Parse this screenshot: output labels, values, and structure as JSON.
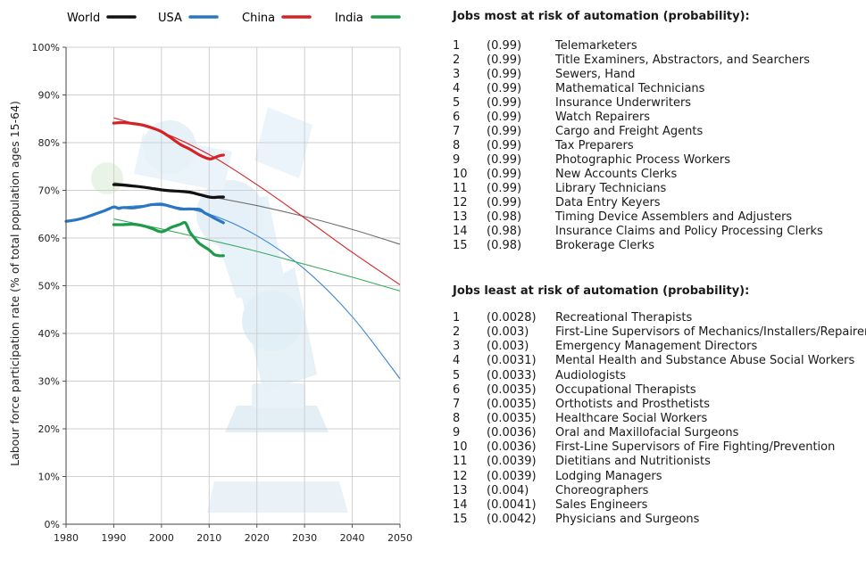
{
  "chart_data": {
    "type": "line",
    "xlabel": "",
    "ylabel": "Labour force participation rate (% of total population ages 15-64)",
    "xlim": [
      1980,
      2050
    ],
    "ylim": [
      0,
      100
    ],
    "xticks": [
      1980,
      1990,
      2000,
      2010,
      2020,
      2030,
      2040,
      2050
    ],
    "yticks": [
      "0%",
      "10%",
      "20%",
      "30%",
      "40%",
      "50%",
      "60%",
      "70%",
      "80%",
      "90%",
      "100%"
    ],
    "grid": true,
    "legend_position": "top",
    "series": [
      {
        "name": "World",
        "color": "#111111",
        "trend_color": "#6e6e6e",
        "points": [
          [
            1990,
            71.2
          ],
          [
            1992,
            71.1
          ],
          [
            1994,
            70.9
          ],
          [
            1996,
            70.7
          ],
          [
            1998,
            70.4
          ],
          [
            2000,
            70.1
          ],
          [
            2002,
            69.9
          ],
          [
            2004,
            69.8
          ],
          [
            2006,
            69.6
          ],
          [
            2008,
            69.1
          ],
          [
            2010,
            68.6
          ],
          [
            2011,
            68.5
          ],
          [
            2012,
            68.6
          ],
          [
            2013,
            68.6
          ]
        ],
        "trend": [
          [
            1990,
            71.6
          ],
          [
            2000,
            70.3
          ],
          [
            2010,
            68.7
          ],
          [
            2020,
            66.8
          ],
          [
            2030,
            64.5
          ],
          [
            2040,
            61.8
          ],
          [
            2050,
            58.7
          ]
        ]
      },
      {
        "name": "USA",
        "color": "#2a76c4",
        "trend_color": "#3c86d0",
        "points": [
          [
            1980,
            63.5
          ],
          [
            1982,
            63.8
          ],
          [
            1984,
            64.3
          ],
          [
            1986,
            65.0
          ],
          [
            1988,
            65.7
          ],
          [
            1990,
            66.5
          ],
          [
            1991,
            66.2
          ],
          [
            1992,
            66.4
          ],
          [
            1994,
            66.3
          ],
          [
            1996,
            66.6
          ],
          [
            1998,
            67.0
          ],
          [
            2000,
            67.1
          ],
          [
            2002,
            66.6
          ],
          [
            2004,
            66.1
          ],
          [
            2006,
            66.1
          ],
          [
            2008,
            66.0
          ],
          [
            2009,
            65.3
          ],
          [
            2010,
            64.8
          ],
          [
            2011,
            64.2
          ],
          [
            2012,
            63.7
          ],
          [
            2013,
            63.2
          ]
        ],
        "trend": [
          [
            1990,
            66.4
          ],
          [
            2000,
            66.8
          ],
          [
            2010,
            65.0
          ],
          [
            2020,
            60.5
          ],
          [
            2030,
            53.5
          ],
          [
            2040,
            43.5
          ],
          [
            2050,
            30.5
          ]
        ]
      },
      {
        "name": "China",
        "color": "#d42226",
        "trend_color": "#d42226",
        "points": [
          [
            1990,
            84.1
          ],
          [
            1992,
            84.2
          ],
          [
            1994,
            84.0
          ],
          [
            1996,
            83.7
          ],
          [
            1998,
            83.1
          ],
          [
            2000,
            82.3
          ],
          [
            2002,
            81.0
          ],
          [
            2004,
            79.6
          ],
          [
            2006,
            78.6
          ],
          [
            2008,
            77.4
          ],
          [
            2010,
            76.6
          ],
          [
            2011,
            76.8
          ],
          [
            2012,
            77.2
          ],
          [
            2013,
            77.4
          ]
        ],
        "trend": [
          [
            1990,
            85.2
          ],
          [
            2000,
            82.2
          ],
          [
            2010,
            77.5
          ],
          [
            2020,
            71.2
          ],
          [
            2030,
            64.2
          ],
          [
            2040,
            57.0
          ],
          [
            2050,
            50.2
          ]
        ]
      },
      {
        "name": "India",
        "color": "#1e9a4a",
        "trend_color": "#3aaa60",
        "points": [
          [
            1990,
            62.8
          ],
          [
            1992,
            62.8
          ],
          [
            1994,
            62.9
          ],
          [
            1996,
            62.6
          ],
          [
            1998,
            62.0
          ],
          [
            2000,
            61.3
          ],
          [
            2002,
            62.2
          ],
          [
            2004,
            62.9
          ],
          [
            2005,
            63.2
          ],
          [
            2006,
            61.2
          ],
          [
            2007,
            59.9
          ],
          [
            2008,
            58.8
          ],
          [
            2010,
            57.5
          ],
          [
            2011,
            56.6
          ],
          [
            2012,
            56.3
          ],
          [
            2013,
            56.3
          ]
        ],
        "trend": [
          [
            1990,
            64.0
          ],
          [
            2000,
            61.9
          ],
          [
            2010,
            59.6
          ],
          [
            2020,
            57.2
          ],
          [
            2030,
            54.5
          ],
          [
            2040,
            51.8
          ],
          [
            2050,
            48.9
          ]
        ]
      }
    ]
  },
  "most_at_risk": {
    "title": "Jobs most at risk of automation (probability):",
    "items": [
      {
        "rank": "1",
        "prob": "(0.99)",
        "job": "Telemarketers"
      },
      {
        "rank": "2",
        "prob": "(0.99)",
        "job": "Title Examiners, Abstractors, and Searchers"
      },
      {
        "rank": "3",
        "prob": "(0.99)",
        "job": "Sewers, Hand"
      },
      {
        "rank": "4",
        "prob": "(0.99)",
        "job": "Mathematical Technicians"
      },
      {
        "rank": "5",
        "prob": "(0.99)",
        "job": "Insurance Underwriters"
      },
      {
        "rank": "6",
        "prob": "(0.99)",
        "job": "Watch Repairers"
      },
      {
        "rank": "7",
        "prob": "(0.99)",
        "job": "Cargo and Freight Agents"
      },
      {
        "rank": "8",
        "prob": "(0.99)",
        "job": "Tax Preparers"
      },
      {
        "rank": "9",
        "prob": "(0.99)",
        "job": "Photographic Process Workers"
      },
      {
        "rank": "10",
        "prob": "(0.99)",
        "job": "New Accounts Clerks"
      },
      {
        "rank": "11",
        "prob": "(0.99)",
        "job": "Library Technicians"
      },
      {
        "rank": "12",
        "prob": "(0.99)",
        "job": "Data Entry Keyers"
      },
      {
        "rank": "13",
        "prob": "(0.98)",
        "job": "Timing Device Assemblers and Adjusters"
      },
      {
        "rank": "14",
        "prob": "(0.98)",
        "job": "Insurance Claims and Policy Processing Clerks"
      },
      {
        "rank": "15",
        "prob": "(0.98)",
        "job": "Brokerage Clerks"
      }
    ]
  },
  "least_at_risk": {
    "title": "Jobs least at risk of automation (probability):",
    "items": [
      {
        "rank": "1",
        "prob": "(0.0028)",
        "job": "Recreational Therapists"
      },
      {
        "rank": "2",
        "prob": "(0.003)",
        "job": "First-Line Supervisors of Mechanics/Installers/Repairers"
      },
      {
        "rank": "3",
        "prob": "(0.003)",
        "job": "Emergency Management Directors"
      },
      {
        "rank": "4",
        "prob": "(0.0031)",
        "job": "Mental Health and Substance Abuse Social Workers"
      },
      {
        "rank": "5",
        "prob": "(0.0033)",
        "job": "Audiologists"
      },
      {
        "rank": "6",
        "prob": "(0.0035)",
        "job": "Occupational Therapists"
      },
      {
        "rank": "7",
        "prob": "(0.0035)",
        "job": "Orthotists and Prosthetists"
      },
      {
        "rank": "8",
        "prob": "(0.0035)",
        "job": "Healthcare Social Workers"
      },
      {
        "rank": "9",
        "prob": "(0.0036)",
        "job": "Oral and Maxillofacial Surgeons"
      },
      {
        "rank": "10",
        "prob": "(0.0036)",
        "job": "First-Line Supervisors of Fire Fighting/Prevention"
      },
      {
        "rank": "11",
        "prob": "(0.0039)",
        "job": "Dietitians and Nutritionists"
      },
      {
        "rank": "12",
        "prob": "(0.0039)",
        "job": "Lodging Managers"
      },
      {
        "rank": "13",
        "prob": "(0.004)",
        "job": "Choreographers"
      },
      {
        "rank": "14",
        "prob": "(0.0041)",
        "job": "Sales Engineers"
      },
      {
        "rank": "15",
        "prob": "(0.0042)",
        "job": "Physicians and Surgeons"
      }
    ]
  }
}
